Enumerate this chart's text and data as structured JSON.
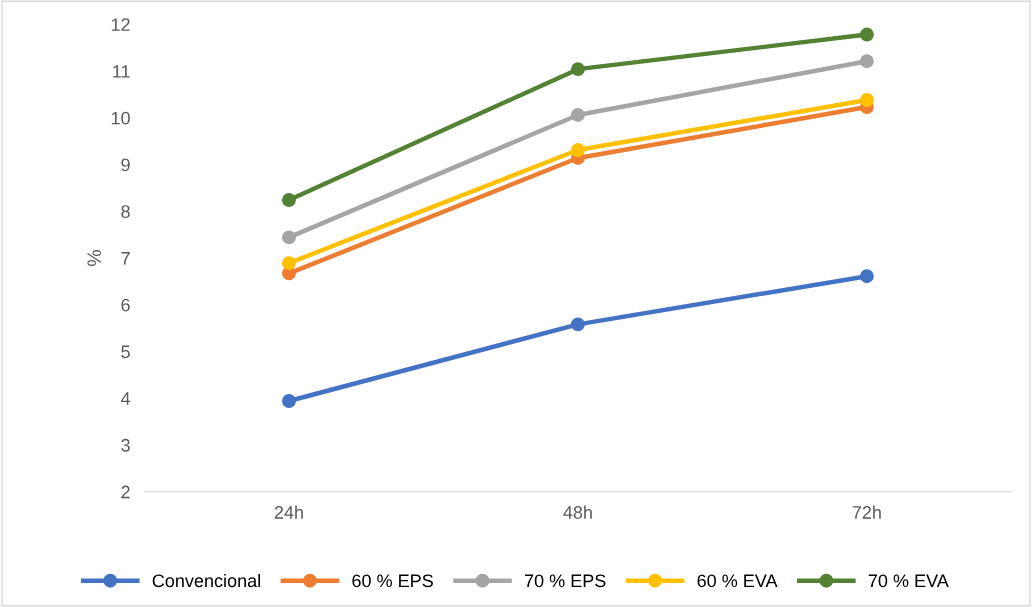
{
  "chart_data": {
    "type": "line",
    "ylabel": "%",
    "categories": [
      "24h",
      "48h",
      "72h"
    ],
    "series": [
      {
        "name": "Convencional",
        "color": "#4472c4",
        "values": [
          3.94,
          5.58,
          6.61
        ]
      },
      {
        "name": "60 % EPS",
        "color": "#ed7d31",
        "values": [
          6.67,
          9.14,
          10.23
        ]
      },
      {
        "name": "70 % EPS",
        "color": "#a5a5a5",
        "values": [
          7.44,
          10.06,
          11.21
        ]
      },
      {
        "name": "60 % EVA",
        "color": "#ffc000",
        "values": [
          6.89,
          9.31,
          10.38
        ]
      },
      {
        "name": "70 % EVA",
        "color": "#548235",
        "values": [
          8.24,
          11.04,
          11.78
        ]
      }
    ],
    "ylim": [
      2,
      12
    ],
    "yticks": [
      2,
      3,
      4,
      5,
      6,
      7,
      8,
      9,
      10,
      11,
      12
    ],
    "grid": false,
    "legend": "bottom",
    "marker": "circle",
    "line_style": "solid"
  }
}
